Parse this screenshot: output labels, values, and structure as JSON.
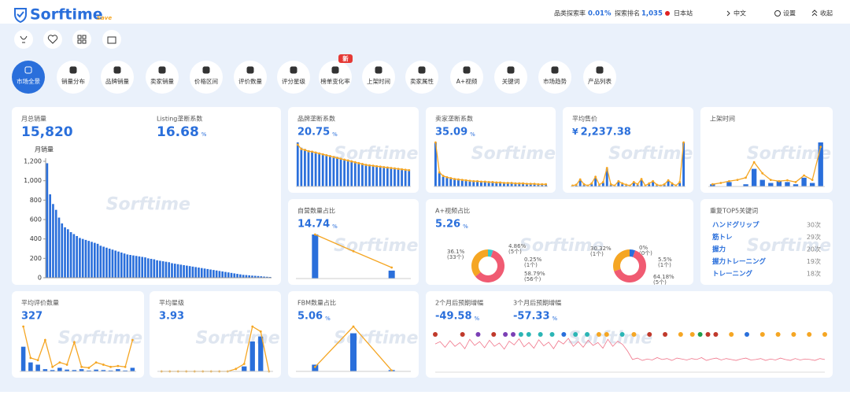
{
  "header": {
    "logo": "Sorftime",
    "badge": "Save",
    "stats": [
      {
        "label": "品类探索率",
        "value": "0.01%"
      },
      {
        "label": "探索排名",
        "value": "1,035"
      }
    ],
    "site": "日本站",
    "language": "中文",
    "settings": "设置",
    "collapse": "收起"
  },
  "watermark": "Sorftime",
  "tabs": [
    {
      "label": "市场全景",
      "active": true
    },
    {
      "label": "销量分布"
    },
    {
      "label": "品牌销量"
    },
    {
      "label": "卖家销量"
    },
    {
      "label": "价格区间"
    },
    {
      "label": "评价数量"
    },
    {
      "label": "评分星级"
    },
    {
      "label": "榜单变化率",
      "badge": "新"
    },
    {
      "label": "上架时间"
    },
    {
      "label": "卖家属性"
    },
    {
      "label": "A+视频"
    },
    {
      "label": "关键词"
    },
    {
      "label": "市场趋势"
    },
    {
      "label": "产品列表"
    }
  ],
  "cards": [
    {
      "metrics": [
        {
          "label": "月总销量",
          "value": "15,820"
        },
        {
          "label": "Listing垄断系数",
          "value": "16.68",
          "unit": "%"
        }
      ],
      "chart": {
        "type": "bar",
        "y_label": "月销量",
        "ylim": [
          0,
          1200
        ],
        "yticks": [
          0,
          200,
          400,
          600,
          800,
          {
            "value": 1000,
            "label": "1,000"
          },
          {
            "value": 1200,
            "label": "1,200"
          }
        ],
        "values": [
          1180,
          860,
          760,
          700,
          620,
          560,
          520,
          500,
          470,
          450,
          430,
          410,
          400,
          390,
          380,
          370,
          360,
          350,
          330,
          320,
          310,
          300,
          290,
          280,
          270,
          260,
          250,
          240,
          235,
          230,
          225,
          220,
          215,
          210,
          200,
          195,
          190,
          180,
          175,
          170,
          165,
          160,
          150,
          145,
          140,
          135,
          130,
          125,
          120,
          115,
          110,
          105,
          100,
          95,
          90,
          85,
          80,
          75,
          70,
          65,
          60,
          55,
          50,
          45,
          40,
          35,
          30,
          28,
          25,
          22,
          20,
          18,
          15,
          12,
          10,
          8
        ]
      }
    },
    {
      "metrics": [
        {
          "label": "品牌垄断系数",
          "value": "20.75",
          "unit": "%"
        }
      ],
      "chart": {
        "type": "combo",
        "bars": [
          100,
          88,
          85,
          82,
          80,
          78,
          76,
          74,
          72,
          70,
          68,
          66,
          64,
          62,
          60,
          58,
          56,
          54,
          52,
          50,
          49,
          48,
          47,
          46,
          45,
          44,
          43,
          42,
          41,
          40,
          39,
          38
        ],
        "line": [
          95,
          85,
          83,
          80,
          79,
          77,
          75,
          73,
          71,
          69,
          67,
          65,
          63,
          61,
          59,
          57,
          55,
          53,
          51,
          49,
          48,
          47,
          46,
          45,
          44,
          43,
          42,
          41,
          40,
          39,
          38,
          37
        ]
      }
    },
    {
      "metrics": [
        {
          "label": "卖家垄断系数",
          "value": "35.09",
          "unit": "%"
        }
      ],
      "chart": {
        "type": "combo",
        "bars": [
          100,
          30,
          22,
          20,
          18,
          16,
          15,
          14,
          13,
          12,
          12,
          11,
          11,
          10,
          10,
          9,
          9,
          8,
          8,
          8,
          7,
          7,
          7,
          6,
          6,
          6,
          5,
          5,
          5,
          5
        ],
        "line": [
          100,
          32,
          24,
          21,
          19,
          17,
          16,
          15,
          14,
          13,
          12,
          12,
          11,
          11,
          10,
          10,
          9,
          9,
          8,
          8,
          8,
          7,
          7,
          7,
          6,
          6,
          6,
          5,
          5,
          5
        ]
      }
    },
    {
      "metrics": [
        {
          "label": "平均售价",
          "prefix": "¥",
          "value": "2,237.38"
        }
      ],
      "chart": {
        "type": "combo",
        "bars": [
          0,
          2,
          15,
          3,
          0,
          5,
          20,
          2,
          8,
          40,
          3,
          0,
          10,
          5,
          2,
          0,
          8,
          3,
          15,
          0,
          5,
          10,
          2,
          0,
          3,
          12,
          5,
          0,
          8,
          100
        ],
        "line": [
          2,
          4,
          16,
          5,
          2,
          7,
          22,
          4,
          10,
          42,
          5,
          2,
          12,
          7,
          4,
          2,
          10,
          5,
          17,
          2,
          7,
          12,
          4,
          2,
          5,
          14,
          7,
          2,
          10,
          100
        ]
      }
    },
    {
      "metrics": [
        {
          "label": "上架时间"
        }
      ],
      "chart": {
        "type": "combo",
        "bars": [
          5,
          0,
          10,
          0,
          5,
          40,
          15,
          8,
          12,
          10,
          5,
          20,
          8,
          100
        ],
        "line": [
          5,
          8,
          12,
          15,
          20,
          55,
          30,
          15,
          12,
          14,
          10,
          25,
          15,
          90
        ]
      }
    },
    {
      "metrics": [
        {
          "label": "自营数量占比",
          "value": "14.74",
          "unit": "%"
        }
      ],
      "chart": {
        "type": "combo",
        "bars": [
          100,
          0,
          18
        ],
        "line": [
          100,
          62,
          25
        ]
      }
    },
    {
      "metrics": [
        {
          "label": "A+视频占比",
          "value": "5.26",
          "unit": "%"
        }
      ],
      "charts": [
        {
          "type": "donut",
          "values": [
            36.1,
            4.86,
            0.25,
            58.79
          ],
          "value_labels": [
            "36.1%",
            "4.86%",
            "0.25%",
            "58.79%"
          ],
          "counts": [
            "(33个)",
            "(5个)",
            "(1个)",
            "(56个)"
          ],
          "colors": [
            "#f5a623",
            "#3cc8c8",
            "#2a6fdb",
            "#f05b72"
          ]
        },
        {
          "type": "donut",
          "values": [
            30.32,
            0,
            5.5,
            64.18
          ],
          "value_labels": [
            "30.32%",
            "0%",
            "5.5%",
            "64.18%"
          ],
          "counts": [
            "(1个)",
            "(0个)",
            "(1个)",
            "(5个)"
          ],
          "colors": [
            "#f5a623",
            "#3cc8c8",
            "#2a6fdb",
            "#f05b72"
          ]
        }
      ]
    },
    {
      "metrics": [
        {
          "label": "重复TOP5关键词"
        }
      ],
      "keywords": [
        {
          "name": "ハンドグリップ",
          "count": "30次"
        },
        {
          "name": "筋トレ",
          "count": "29次"
        },
        {
          "name": "握力",
          "count": "20次"
        },
        {
          "name": "握力トレーニング",
          "count": "19次"
        },
        {
          "name": "トレーニング",
          "count": "18次"
        }
      ]
    },
    {
      "metrics": [
        {
          "label": "平均评价数量",
          "value": "327"
        }
      ],
      "chart": {
        "type": "combo",
        "bars": [
          55,
          20,
          15,
          5,
          3,
          8,
          4,
          3,
          5,
          2,
          4,
          3,
          2,
          5,
          2,
          8
        ],
        "line": [
          100,
          30,
          25,
          70,
          10,
          20,
          15,
          65,
          10,
          8,
          20,
          15,
          10,
          12,
          10,
          70
        ]
      }
    },
    {
      "metrics": [
        {
          "label": "平均星级",
          "value": "3.93"
        }
      ],
      "chart": {
        "type": "combo",
        "bars": [
          0,
          0,
          0,
          0,
          0,
          0,
          0,
          0,
          0,
          0,
          10,
          60,
          70,
          0
        ],
        "line": [
          0,
          0,
          0,
          0,
          0,
          0,
          0,
          0,
          0,
          5,
          15,
          90,
          80,
          0
        ]
      }
    },
    {
      "metrics": [
        {
          "label": "FBM数量占比",
          "value": "5.06",
          "unit": "%"
        }
      ],
      "chart": {
        "type": "combo",
        "bars": [
          15,
          85,
          3
        ],
        "line": [
          10,
          100,
          2
        ]
      }
    },
    {
      "metrics": [
        {
          "label": "2个月后预期增幅",
          "value": "-49.58",
          "unit": "%"
        },
        {
          "label": "3个月后预期增幅",
          "value": "-57.33",
          "unit": "%"
        }
      ],
      "chart": {
        "type": "timeline",
        "line": [
          55,
          60,
          48,
          62,
          50,
          58,
          45,
          65,
          52,
          60,
          47,
          63,
          50,
          57,
          44,
          61,
          53,
          66,
          49,
          58,
          46,
          64,
          51,
          59,
          45,
          62,
          55,
          67,
          50,
          60,
          48,
          63,
          52,
          58,
          46,
          65,
          50,
          61,
          54,
          40,
          22,
          25,
          20,
          23,
          21,
          26,
          22,
          24,
          20,
          25,
          23,
          21,
          24,
          22,
          26,
          20,
          23,
          25,
          21,
          24,
          22,
          20,
          23,
          25,
          21,
          22,
          24,
          20,
          23,
          21,
          25,
          22,
          20,
          24,
          21,
          23,
          22,
          20,
          24,
          22
        ],
        "events": [
          {
            "x": 0,
            "color": "#c0392b"
          },
          {
            "x": 7,
            "color": "#c0392b"
          },
          {
            "x": 11,
            "color": "#7b3fb5"
          },
          {
            "x": 15,
            "color": "#c0392b"
          },
          {
            "x": 18,
            "color": "#7b3fb5"
          },
          {
            "x": 20,
            "color": "#7b3fb5"
          },
          {
            "x": 22,
            "color": "#2bb5b5"
          },
          {
            "x": 24,
            "color": "#2bb5b5"
          },
          {
            "x": 27,
            "color": "#2bb5b5"
          },
          {
            "x": 30,
            "color": "#2bb5b5"
          },
          {
            "x": 33,
            "color": "#2a6fdb"
          },
          {
            "x": 36,
            "color": "#2bb5b5"
          },
          {
            "x": 39,
            "color": "#2bb5b5"
          },
          {
            "x": 42,
            "color": "#f5a623"
          },
          {
            "x": 44,
            "color": "#f5a623"
          },
          {
            "x": 48,
            "color": "#2bb5b5"
          },
          {
            "x": 51,
            "color": "#f5a623"
          },
          {
            "x": 55,
            "color": "#c0392b"
          },
          {
            "x": 59,
            "color": "#c0392b"
          },
          {
            "x": 63,
            "color": "#f5a623"
          },
          {
            "x": 66,
            "color": "#f5a623"
          },
          {
            "x": 68,
            "color": "#1e9e4a"
          },
          {
            "x": 70,
            "color": "#c0392b"
          },
          {
            "x": 72,
            "color": "#c0392b"
          },
          {
            "x": 76,
            "color": "#f5a623"
          },
          {
            "x": 80,
            "color": "#2a6fdb"
          },
          {
            "x": 84,
            "color": "#f5a623"
          },
          {
            "x": 88,
            "color": "#f5a623"
          },
          {
            "x": 92,
            "color": "#f5a623"
          },
          {
            "x": 96,
            "color": "#f5a623"
          },
          {
            "x": 100,
            "color": "#f5a623"
          }
        ]
      }
    }
  ]
}
